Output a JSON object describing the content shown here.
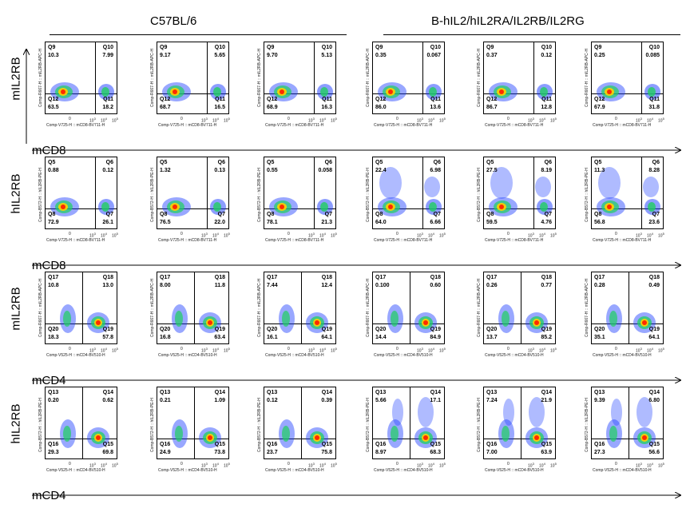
{
  "header": {
    "left": "C57BL/6",
    "right": "B-hIL2/hIL2RA/IL2RB/IL2RG"
  },
  "rows": [
    {
      "ylabel": "mIL2RB",
      "xlabel": "mCD8",
      "yaxis": "Comp-R667-H :: mIL2RB-APC-H",
      "xaxis": "Comp-V725-H :: mCD8-BV711-H",
      "q": [
        "Q9",
        "Q10",
        "Q11",
        "Q12"
      ],
      "panels": [
        [
          "10.3",
          "7.99",
          "18.2",
          "63.5"
        ],
        [
          "9.17",
          "5.65",
          "16.5",
          "68.7"
        ],
        [
          "9.70",
          "5.13",
          "16.3",
          "68.9"
        ],
        [
          "0.35",
          "0.067",
          "13.6",
          "86.0"
        ],
        [
          "0.37",
          "0.12",
          "12.8",
          "86.7"
        ],
        [
          "0.25",
          "0.085",
          "31.8",
          "67.9"
        ]
      ]
    },
    {
      "ylabel": "hIL2RB",
      "xlabel": "mCD8",
      "yaxis": "Comp-B572-H :: hIL2RB-PE-H",
      "xaxis": "Comp-V725-H :: mCD8-BV711-H",
      "q": [
        "Q5",
        "Q6",
        "Q7",
        "Q8"
      ],
      "panels": [
        [
          "0.88",
          "0.12",
          "26.1",
          "72.9"
        ],
        [
          "1.32",
          "0.13",
          "22.0",
          "76.5"
        ],
        [
          "0.55",
          "0.058",
          "21.3",
          "78.1"
        ],
        [
          "22.4",
          "6.98",
          "6.66",
          "64.0"
        ],
        [
          "27.5",
          "8.19",
          "4.76",
          "59.5"
        ],
        [
          "11.3",
          "8.28",
          "23.6",
          "56.8"
        ]
      ]
    },
    {
      "ylabel": "mIL2RB",
      "xlabel": "mCD4",
      "yaxis": "Comp-R667-H :: mIL2RB-APC-H",
      "xaxis": "Comp-V525-H :: mCD4-BV510-H",
      "q": [
        "Q17",
        "Q18",
        "Q19",
        "Q20"
      ],
      "panels": [
        [
          "10.8",
          "13.0",
          "57.8",
          "18.3"
        ],
        [
          "8.00",
          "11.8",
          "63.4",
          "16.8"
        ],
        [
          "7.44",
          "12.4",
          "64.1",
          "16.1"
        ],
        [
          "0.100",
          "0.60",
          "84.9",
          "14.4"
        ],
        [
          "0.26",
          "0.77",
          "85.2",
          "13.7"
        ],
        [
          "0.28",
          "0.49",
          "64.1",
          "35.1"
        ]
      ]
    },
    {
      "ylabel": "hIL2RB",
      "xlabel": "mCD4",
      "yaxis": "Comp-B572-H :: hIL2RB-PE-H",
      "xaxis": "Comp-V525-H :: mCD4-BV510-H",
      "q": [
        "Q13",
        "Q14",
        "Q15",
        "Q16"
      ],
      "panels": [
        [
          "0.20",
          "0.62",
          "69.8",
          "29.3"
        ],
        [
          "0.21",
          "1.09",
          "73.8",
          "24.9"
        ],
        [
          "0.12",
          "0.39",
          "75.8",
          "23.7"
        ],
        [
          "5.66",
          "17.1",
          "68.3",
          "8.97"
        ],
        [
          "7.24",
          "21.9",
          "63.9",
          "7.00"
        ],
        [
          "9.39",
          "6.80",
          "56.6",
          "27.3"
        ]
      ]
    }
  ],
  "ticks": {
    "x": [
      "0",
      "10",
      "10",
      "10"
    ],
    "xexp": [
      "",
      "3",
      "4",
      "5"
    ]
  },
  "colors": {
    "hot": "#ff2a00",
    "warm": "#ffd000",
    "mid": "#20d060",
    "cool": "#1a3cff"
  }
}
